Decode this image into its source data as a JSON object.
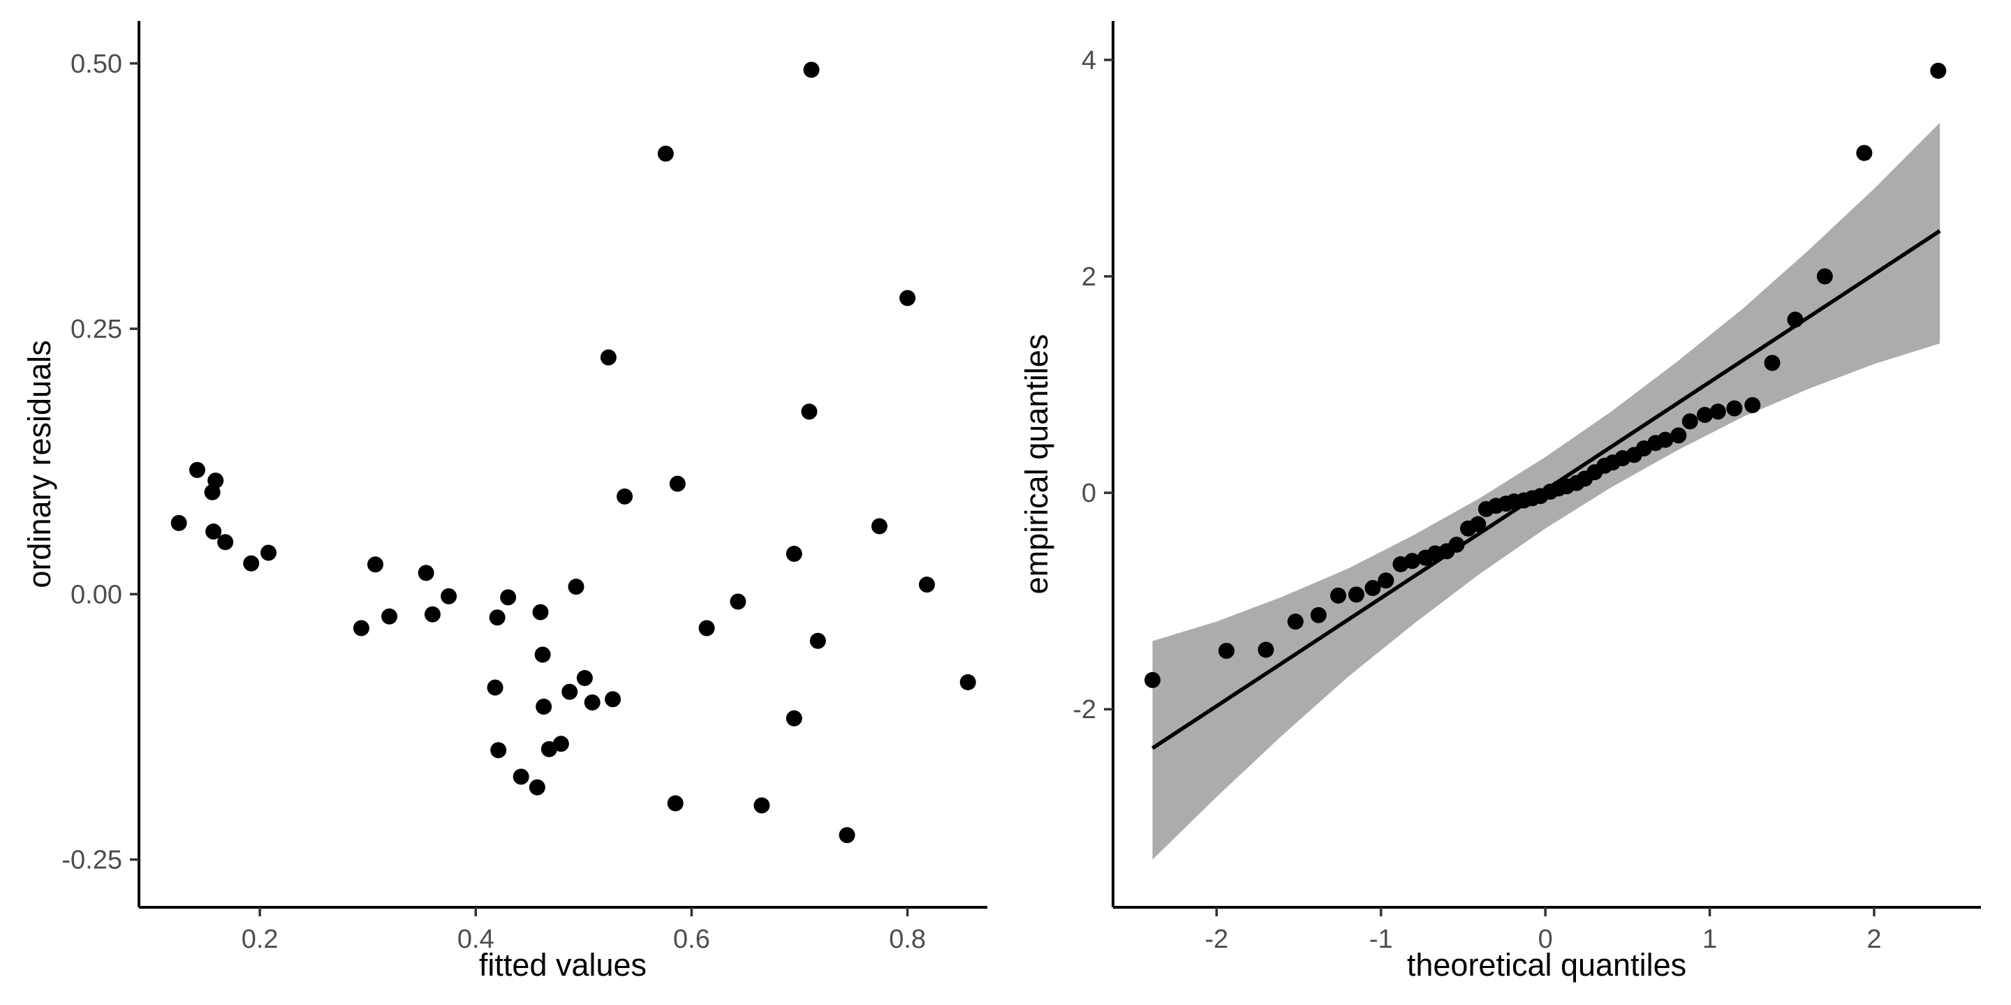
{
  "figure": {
    "background": "#ffffff",
    "point_color": "#000000",
    "axis_line_color": "#000000",
    "tick_mark_color": "#333333",
    "tick_label_color": "#4d4d4d",
    "band_color": "#acacac"
  },
  "chart_data": [
    {
      "type": "scatter",
      "title": "",
      "xlabel": "fitted values",
      "ylabel": "ordinary residuals",
      "xlim": [
        0.088,
        0.874
      ],
      "ylim": [
        -0.295,
        0.54
      ],
      "grid": false,
      "x_ticks": [
        0.2,
        0.4,
        0.6,
        0.8
      ],
      "x_tick_labels": [
        "0.2",
        "0.4",
        "0.6",
        "0.8"
      ],
      "y_ticks": [
        -0.25,
        0.0,
        0.25,
        0.5
      ],
      "y_tick_labels": [
        "-0.25",
        "0.00",
        "0.25",
        "0.50"
      ],
      "points": [
        [
          0.142,
          0.117
        ],
        [
          0.159,
          0.107
        ],
        [
          0.156,
          0.096
        ],
        [
          0.125,
          0.067
        ],
        [
          0.157,
          0.059
        ],
        [
          0.168,
          0.049
        ],
        [
          0.192,
          0.029
        ],
        [
          0.208,
          0.039
        ],
        [
          0.307,
          0.028
        ],
        [
          0.354,
          0.02
        ],
        [
          0.375,
          -0.002
        ],
        [
          0.32,
          -0.021
        ],
        [
          0.36,
          -0.019
        ],
        [
          0.294,
          -0.032
        ],
        [
          0.43,
          -0.003
        ],
        [
          0.42,
          -0.022
        ],
        [
          0.46,
          -0.017
        ],
        [
          0.493,
          0.007
        ],
        [
          0.462,
          -0.057
        ],
        [
          0.418,
          -0.088
        ],
        [
          0.463,
          -0.106
        ],
        [
          0.487,
          -0.092
        ],
        [
          0.501,
          -0.079
        ],
        [
          0.508,
          -0.102
        ],
        [
          0.527,
          -0.099
        ],
        [
          0.468,
          -0.146
        ],
        [
          0.479,
          -0.141
        ],
        [
          0.421,
          -0.147
        ],
        [
          0.442,
          -0.172
        ],
        [
          0.457,
          -0.182
        ],
        [
          0.774,
          0.064
        ],
        [
          0.695,
          0.038
        ],
        [
          0.818,
          0.009
        ],
        [
          0.643,
          -0.007
        ],
        [
          0.614,
          -0.032
        ],
        [
          0.717,
          -0.044
        ],
        [
          0.856,
          -0.083
        ],
        [
          0.695,
          -0.117
        ],
        [
          0.585,
          -0.197
        ],
        [
          0.665,
          -0.199
        ],
        [
          0.744,
          -0.227
        ],
        [
          0.711,
          0.494
        ],
        [
          0.576,
          0.415
        ],
        [
          0.8,
          0.279
        ],
        [
          0.523,
          0.223
        ],
        [
          0.709,
          0.172
        ],
        [
          0.587,
          0.104
        ],
        [
          0.538,
          0.092
        ]
      ]
    },
    {
      "type": "scatter",
      "title": "",
      "xlabel": "theoretical quantiles",
      "ylabel": "empirical quantiles",
      "xlim": [
        -2.63,
        2.65
      ],
      "ylim": [
        -3.83,
        4.36
      ],
      "grid": false,
      "x_ticks": [
        -2,
        -1,
        0,
        1,
        2
      ],
      "x_tick_labels": [
        "-2",
        "-1",
        "0",
        "1",
        "2"
      ],
      "y_ticks": [
        -2,
        0,
        2,
        4
      ],
      "y_tick_labels": [
        "-2",
        "0",
        "2",
        "4"
      ],
      "points": [
        [
          -2.39,
          -1.73
        ],
        [
          -1.94,
          -1.46
        ],
        [
          -1.7,
          -1.45
        ],
        [
          -1.52,
          -1.19
        ],
        [
          -1.38,
          -1.13
        ],
        [
          -1.26,
          -0.95
        ],
        [
          -1.15,
          -0.94
        ],
        [
          -1.05,
          -0.88
        ],
        [
          -0.97,
          -0.81
        ],
        [
          -0.88,
          -0.66
        ],
        [
          -0.81,
          -0.63
        ],
        [
          -0.73,
          -0.6
        ],
        [
          -0.67,
          -0.56
        ],
        [
          -0.6,
          -0.54
        ],
        [
          -0.54,
          -0.48
        ],
        [
          -0.47,
          -0.33
        ],
        [
          -0.41,
          -0.29
        ],
        [
          -0.36,
          -0.15
        ],
        [
          -0.3,
          -0.12
        ],
        [
          -0.24,
          -0.1
        ],
        [
          -0.19,
          -0.08
        ],
        [
          -0.13,
          -0.07
        ],
        [
          -0.08,
          -0.05
        ],
        [
          -0.03,
          -0.03
        ],
        [
          0.03,
          0.01
        ],
        [
          0.08,
          0.04
        ],
        [
          0.13,
          0.06
        ],
        [
          0.19,
          0.09
        ],
        [
          0.24,
          0.13
        ],
        [
          0.3,
          0.19
        ],
        [
          0.36,
          0.25
        ],
        [
          0.41,
          0.28
        ],
        [
          0.47,
          0.32
        ],
        [
          0.54,
          0.35
        ],
        [
          0.6,
          0.41
        ],
        [
          0.67,
          0.46
        ],
        [
          0.73,
          0.49
        ],
        [
          0.81,
          0.53
        ],
        [
          0.88,
          0.66
        ],
        [
          0.97,
          0.72
        ],
        [
          1.05,
          0.75
        ],
        [
          1.15,
          0.78
        ],
        [
          1.26,
          0.81
        ],
        [
          1.38,
          1.2
        ],
        [
          1.52,
          1.6
        ],
        [
          1.7,
          2.0
        ],
        [
          1.94,
          3.14
        ],
        [
          2.39,
          3.9
        ]
      ],
      "reference_line": {
        "x": [
          -2.39,
          2.4
        ],
        "y": [
          -2.36,
          2.42
        ]
      },
      "confidence_band": {
        "x": [
          -2.39,
          -2.0,
          -1.6,
          -1.2,
          -0.8,
          -0.4,
          0.0,
          0.4,
          0.8,
          1.2,
          1.6,
          2.0,
          2.4
        ],
        "upper": [
          -1.37,
          -1.19,
          -0.96,
          -0.7,
          -0.39,
          -0.05,
          0.33,
          0.75,
          1.21,
          1.7,
          2.24,
          2.81,
          3.42
        ],
        "lower": [
          -3.39,
          -2.81,
          -2.24,
          -1.7,
          -1.21,
          -0.75,
          -0.33,
          0.05,
          0.39,
          0.7,
          0.96,
          1.19,
          1.38
        ]
      }
    }
  ]
}
